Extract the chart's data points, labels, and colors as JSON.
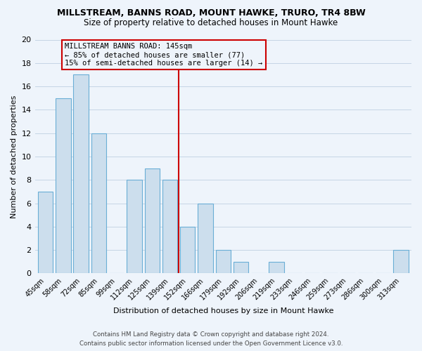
{
  "title": "MILLSTREAM, BANNS ROAD, MOUNT HAWKE, TRURO, TR4 8BW",
  "subtitle": "Size of property relative to detached houses in Mount Hawke",
  "xlabel": "Distribution of detached houses by size in Mount Hawke",
  "ylabel": "Number of detached properties",
  "footer_line1": "Contains HM Land Registry data © Crown copyright and database right 2024.",
  "footer_line2": "Contains public sector information licensed under the Open Government Licence v3.0.",
  "bin_labels": [
    "45sqm",
    "58sqm",
    "72sqm",
    "85sqm",
    "99sqm",
    "112sqm",
    "125sqm",
    "139sqm",
    "152sqm",
    "166sqm",
    "179sqm",
    "192sqm",
    "206sqm",
    "219sqm",
    "233sqm",
    "246sqm",
    "259sqm",
    "273sqm",
    "286sqm",
    "300sqm",
    "313sqm"
  ],
  "bar_heights": [
    7,
    15,
    17,
    12,
    0,
    8,
    9,
    8,
    4,
    6,
    2,
    1,
    0,
    1,
    0,
    0,
    0,
    0,
    0,
    0,
    2
  ],
  "bar_color": "#ccdeed",
  "bar_edgecolor": "#6aaed6",
  "grid_color": "#c5d5e5",
  "background_color": "#eef4fb",
  "vline_color": "#cc0000",
  "annotation_title": "MILLSTREAM BANNS ROAD: 145sqm",
  "annotation_line1": "← 85% of detached houses are smaller (77)",
  "annotation_line2": "15% of semi-detached houses are larger (14) →",
  "ylim": [
    0,
    20
  ],
  "yticks": [
    0,
    2,
    4,
    6,
    8,
    10,
    12,
    14,
    16,
    18,
    20
  ]
}
